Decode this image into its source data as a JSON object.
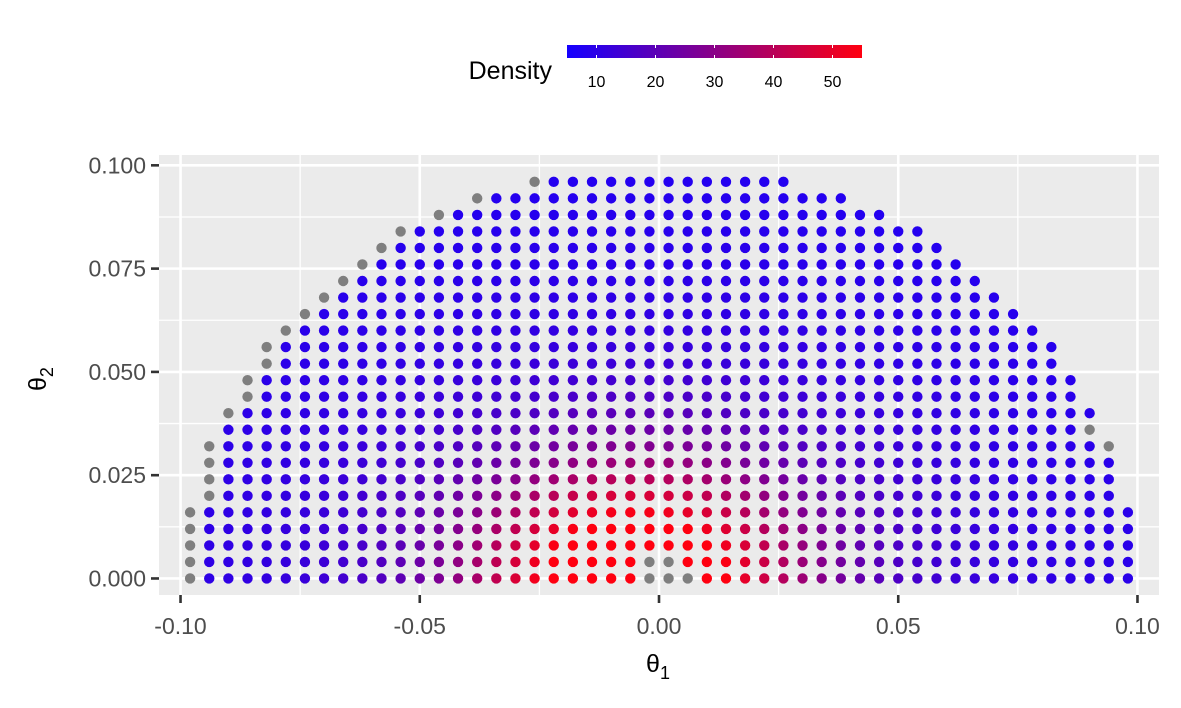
{
  "chart_data": {
    "type": "scatter",
    "title": "",
    "xlabel": {
      "base": "θ",
      "sub": "1"
    },
    "ylabel": {
      "base": "θ",
      "sub": "2"
    },
    "xlim": [
      -0.1045,
      0.1045
    ],
    "ylim": [
      -0.004,
      0.1025
    ],
    "x_ticks": [
      -0.1,
      -0.05,
      0.0,
      0.05,
      0.1
    ],
    "x_tick_labels": [
      "-0.10",
      "-0.05",
      "0.00",
      "0.05",
      "0.10"
    ],
    "y_ticks": [
      0.0,
      0.025,
      0.05,
      0.075,
      0.1
    ],
    "y_tick_labels": [
      "0.000",
      "0.025",
      "0.050",
      "0.075",
      "0.100"
    ],
    "grid": true,
    "background": "#ebebeb",
    "grid_color": "#ffffff",
    "legend": {
      "title": "Density",
      "position": "top",
      "ticks": [
        10,
        20,
        30,
        40,
        50
      ],
      "tick_labels": [
        "10",
        "20",
        "30",
        "40",
        "50"
      ],
      "range": [
        5,
        55
      ],
      "low_color": "#1500ff",
      "high_color": "#ff0010",
      "na_color": "#7f7f7f"
    },
    "grid_points": {
      "x_start": -0.098,
      "x_step": 0.004,
      "x_count": 50,
      "y_start": 0.0,
      "y_step": 0.004,
      "y_count": 25,
      "radius": 0.1
    },
    "density_model": {
      "peak": 55,
      "peak_x": -0.005,
      "peak_y": 0.0,
      "sx": 0.025,
      "sy": 0.02,
      "tail": 8,
      "tail_sx": 0.08,
      "tail_sy": 0.06,
      "floor": 6
    },
    "missing_density_points": [
      [
        -0.094,
        0.032
      ],
      [
        -0.094,
        0.028
      ],
      [
        -0.094,
        0.024
      ],
      [
        -0.094,
        0.02
      ],
      [
        -0.098,
        0.016
      ],
      [
        -0.098,
        0.012
      ],
      [
        -0.098,
        0.008
      ],
      [
        -0.098,
        0.004
      ],
      [
        -0.098,
        0.0
      ],
      [
        -0.09,
        0.04
      ],
      [
        -0.086,
        0.048
      ],
      [
        -0.086,
        0.044
      ],
      [
        -0.082,
        0.056
      ],
      [
        -0.082,
        0.052
      ],
      [
        -0.078,
        0.06
      ],
      [
        -0.074,
        0.064
      ],
      [
        -0.07,
        0.068
      ],
      [
        -0.066,
        0.072
      ],
      [
        -0.062,
        0.076
      ],
      [
        -0.058,
        0.08
      ],
      [
        -0.054,
        0.084
      ],
      [
        -0.046,
        0.088
      ],
      [
        -0.038,
        0.092
      ],
      [
        -0.026,
        0.096
      ],
      [
        -0.002,
        0.0
      ],
      [
        0.002,
        0.0
      ],
      [
        0.006,
        0.0
      ],
      [
        -0.002,
        0.004
      ],
      [
        0.002,
        0.004
      ],
      [
        0.09,
        0.036
      ],
      [
        0.094,
        0.032
      ]
    ]
  }
}
